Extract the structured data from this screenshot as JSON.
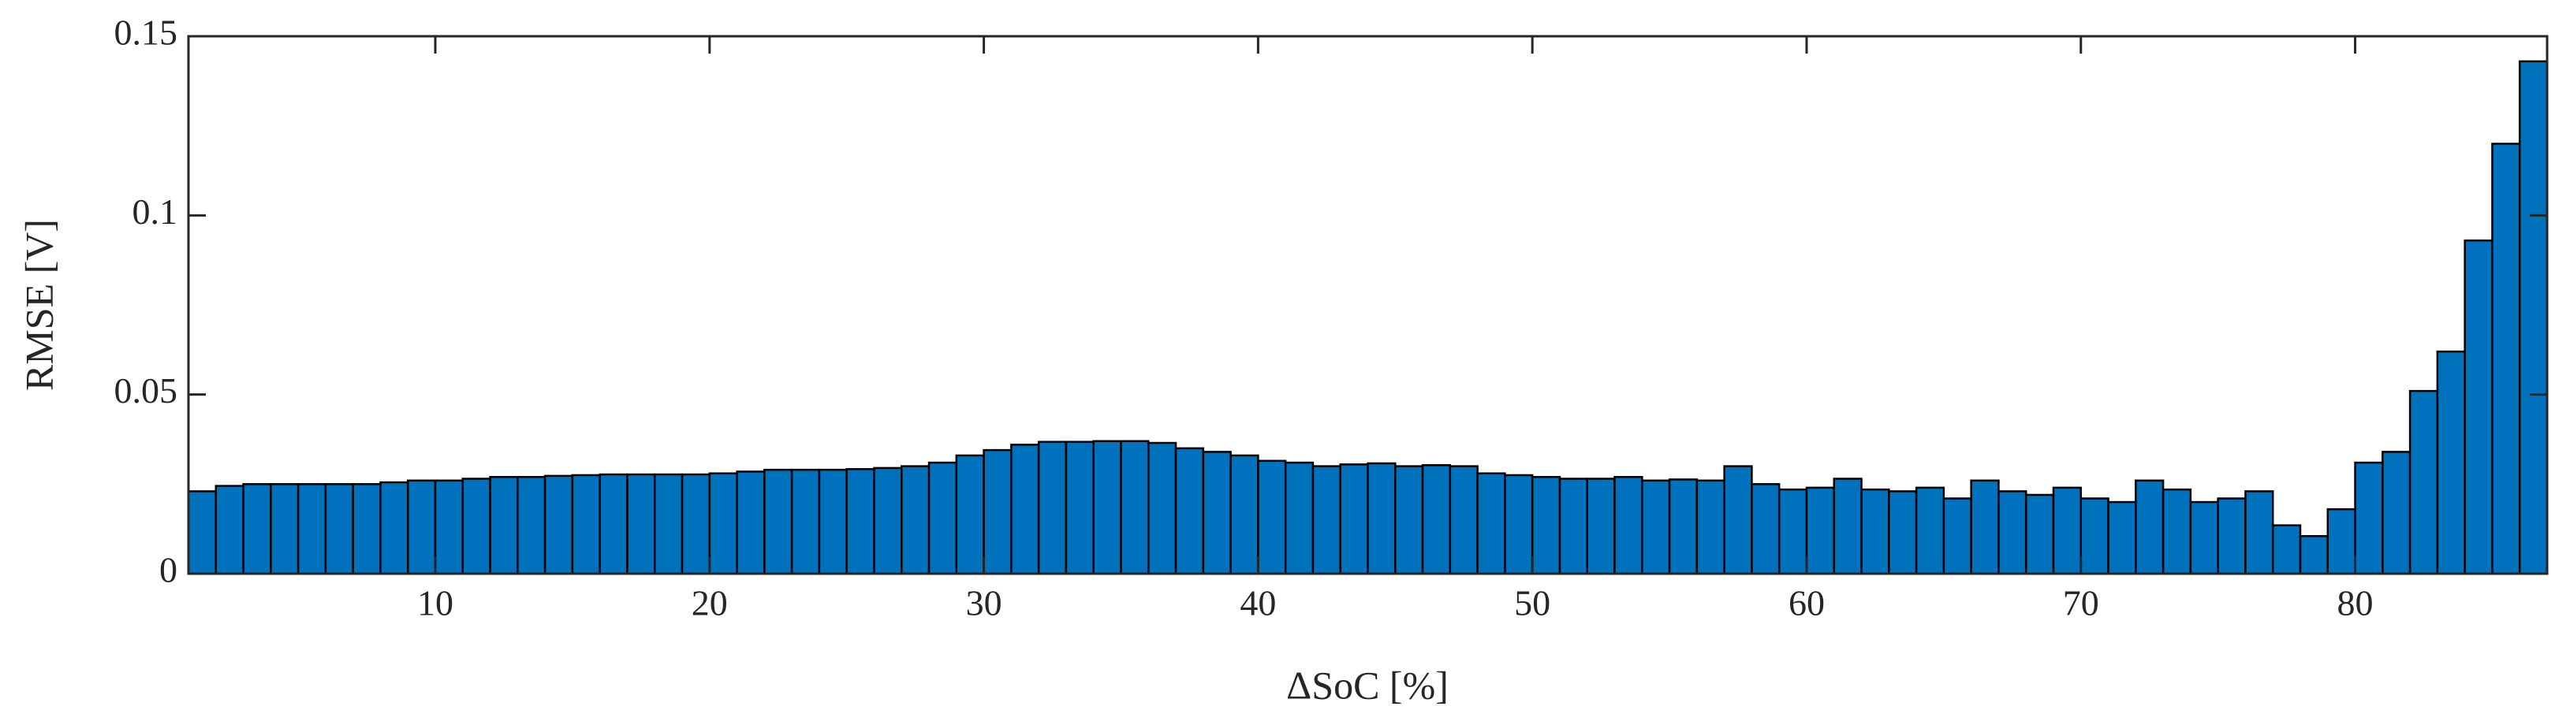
{
  "chart_data": {
    "type": "histogram",
    "x_label": "ΔSoC [%]",
    "y_label": "RMSE [V]",
    "bins": [
      1,
      2,
      3,
      4,
      5,
      6,
      7,
      8,
      9,
      10,
      11,
      12,
      13,
      14,
      15,
      16,
      17,
      18,
      19,
      20,
      21,
      22,
      23,
      24,
      25,
      26,
      27,
      28,
      29,
      30,
      31,
      32,
      33,
      34,
      35,
      36,
      37,
      38,
      39,
      40,
      41,
      42,
      43,
      44,
      45,
      46,
      47,
      48,
      49,
      50,
      51,
      52,
      53,
      54,
      55,
      56,
      57,
      58,
      59,
      60,
      61,
      62,
      63,
      64,
      65,
      66,
      67,
      68,
      69,
      70,
      71,
      72,
      73,
      74,
      75,
      76,
      77,
      78,
      79,
      80,
      81,
      82,
      83,
      84,
      85,
      86,
      87
    ],
    "values": [
      0.023,
      0.0245,
      0.025,
      0.025,
      0.025,
      0.025,
      0.025,
      0.0255,
      0.026,
      0.026,
      0.0265,
      0.027,
      0.027,
      0.0273,
      0.0275,
      0.0277,
      0.0277,
      0.0277,
      0.0277,
      0.028,
      0.0285,
      0.029,
      0.029,
      0.029,
      0.0292,
      0.0295,
      0.03,
      0.031,
      0.033,
      0.0345,
      0.036,
      0.0368,
      0.0368,
      0.037,
      0.037,
      0.0365,
      0.035,
      0.034,
      0.033,
      0.0315,
      0.031,
      0.03,
      0.0305,
      0.0308,
      0.03,
      0.0303,
      0.03,
      0.028,
      0.0275,
      0.027,
      0.0265,
      0.0265,
      0.027,
      0.026,
      0.0263,
      0.026,
      0.03,
      0.025,
      0.0235,
      0.024,
      0.0265,
      0.0235,
      0.023,
      0.024,
      0.021,
      0.026,
      0.023,
      0.022,
      0.024,
      0.021,
      0.02,
      0.026,
      0.0235,
      0.02,
      0.021,
      0.023,
      0.0135,
      0.0105,
      0.018,
      0.031,
      0.034,
      0.051,
      0.062,
      0.093,
      0.12,
      0.143
    ],
    "color": "#0072bd",
    "xlim": [
      1,
      87
    ],
    "xticks": [
      10,
      20,
      30,
      40,
      50,
      60,
      70,
      80
    ],
    "ylim": [
      0,
      0.15
    ],
    "yticks": [
      0,
      0.05,
      0.1,
      0.15
    ]
  }
}
